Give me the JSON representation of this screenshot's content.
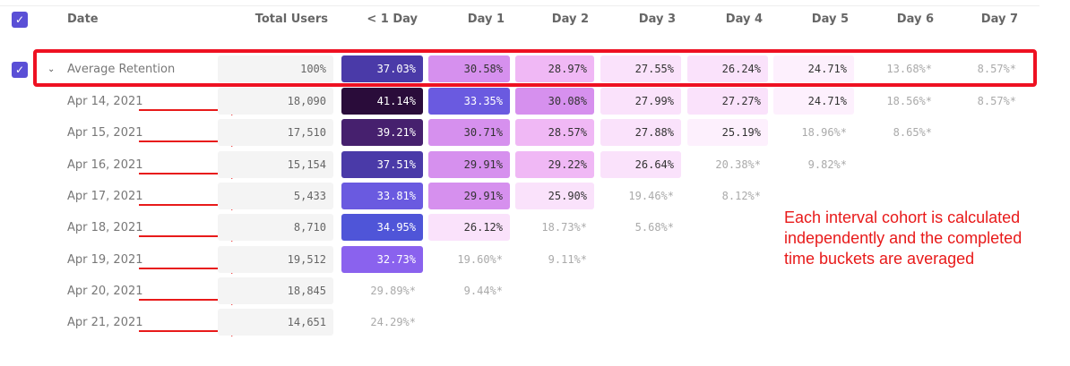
{
  "columns": [
    "Date",
    "Total Users",
    "< 1 Day",
    "Day 1",
    "Day 2",
    "Day 3",
    "Day 4",
    "Day 5",
    "Day 6",
    "Day 7"
  ],
  "average": {
    "label": "Average Retention",
    "total": "100%",
    "cells": [
      "37.03%",
      "30.58%",
      "28.97%",
      "27.55%",
      "26.24%",
      "24.71%",
      "13.68%*",
      "8.57%*"
    ]
  },
  "rows": [
    {
      "date": "Apr 14, 2021",
      "total": "18,090",
      "cells": [
        "41.14%",
        "33.35%",
        "30.08%",
        "27.99%",
        "27.27%",
        "24.71%",
        "18.56%*",
        "8.57%*"
      ]
    },
    {
      "date": "Apr 15, 2021",
      "total": "17,510",
      "cells": [
        "39.21%",
        "30.71%",
        "28.57%",
        "27.88%",
        "25.19%",
        "18.96%*",
        "8.65%*"
      ]
    },
    {
      "date": "Apr 16, 2021",
      "total": "15,154",
      "cells": [
        "37.51%",
        "29.91%",
        "29.22%",
        "26.64%",
        "20.38%*",
        "9.82%*"
      ]
    },
    {
      "date": "Apr 17, 2021",
      "total": "5,433",
      "cells": [
        "33.81%",
        "29.91%",
        "25.90%",
        "19.46%*",
        "8.12%*"
      ]
    },
    {
      "date": "Apr 18, 2021",
      "total": "8,710",
      "cells": [
        "34.95%",
        "26.12%",
        "18.73%*",
        "5.68%*"
      ]
    },
    {
      "date": "Apr 19, 2021",
      "total": "19,512",
      "cells": [
        "32.73%",
        "19.60%*",
        "9.11%*"
      ]
    },
    {
      "date": "Apr 20, 2021",
      "total": "18,845",
      "cells": [
        "29.89%*",
        "9.44%*"
      ]
    },
    {
      "date": "Apr 21, 2021",
      "total": "14,651",
      "cells": [
        "24.29%*"
      ]
    }
  ],
  "annotation": "Each interval cohort is calculated independently and the completed time buckets are averaged",
  "colors": {
    "accent": "#5a4fd6",
    "annotation": "#e81a1a"
  }
}
